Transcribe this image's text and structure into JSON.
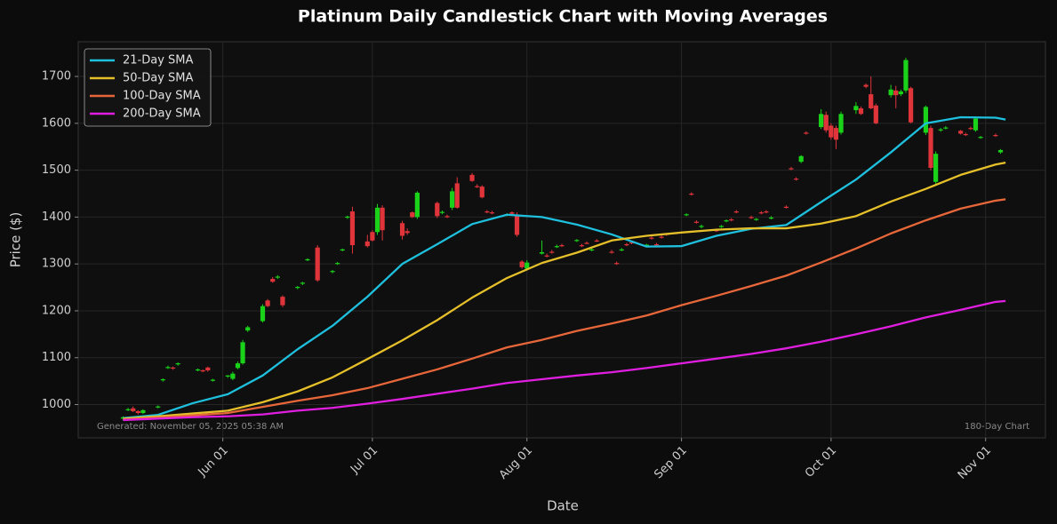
{
  "chart_data": {
    "type": "candlestick",
    "title": "Platinum Daily Candlestick Chart with Moving Averages",
    "x_label": "Date",
    "y_label": "Price ($)",
    "footer_left": "Generated: November 05, 2025 05:38 AM",
    "footer_right": "180-Day Chart",
    "grid": true,
    "legend": "upper left",
    "xlim": [
      "May 03",
      "Nov 13"
    ],
    "xticks": [
      "Jun 01",
      "Jul 01",
      "Aug 01",
      "Sep 01",
      "Oct 01",
      "Nov 01"
    ],
    "ylim": [
      929,
      1774
    ],
    "yticks": [
      1000,
      1100,
      1200,
      1300,
      1400,
      1500,
      1600,
      1700
    ],
    "up_color": "#19d219",
    "down_color": "#e0343b",
    "candles": {
      "x": [
        "May 12",
        "May 13",
        "May 14",
        "May 15",
        "May 16",
        "May 19",
        "May 20",
        "May 21",
        "May 22",
        "May 23",
        "May 27",
        "May 28",
        "May 29",
        "May 30",
        "Jun 02",
        "Jun 03",
        "Jun 04",
        "Jun 05",
        "Jun 06",
        "Jun 09",
        "Jun 10",
        "Jun 11",
        "Jun 12",
        "Jun 13",
        "Jun 16",
        "Jun 17",
        "Jun 18",
        "Jun 20",
        "Jun 23",
        "Jun 24",
        "Jun 25",
        "Jun 26",
        "Jun 27",
        "Jun 30",
        "Jul 01",
        "Jul 02",
        "Jul 03",
        "Jul 07",
        "Jul 08",
        "Jul 09",
        "Jul 10",
        "Jul 14",
        "Jul 15",
        "Jul 16",
        "Jul 17",
        "Jul 18",
        "Jul 21",
        "Jul 22",
        "Jul 23",
        "Jul 24",
        "Jul 25",
        "Jul 28",
        "Jul 29",
        "Jul 30",
        "Jul 31",
        "Aug 01",
        "Aug 04",
        "Aug 05",
        "Aug 06",
        "Aug 07",
        "Aug 08",
        "Aug 11",
        "Aug 12",
        "Aug 13",
        "Aug 14",
        "Aug 15",
        "Aug 18",
        "Aug 19",
        "Aug 20",
        "Aug 21",
        "Aug 22",
        "Aug 25",
        "Aug 26",
        "Aug 27",
        "Aug 28",
        "Aug 29",
        "Sep 02",
        "Sep 03",
        "Sep 04",
        "Sep 05",
        "Sep 08",
        "Sep 09",
        "Sep 10",
        "Sep 11",
        "Sep 12",
        "Sep 15",
        "Sep 16",
        "Sep 17",
        "Sep 18",
        "Sep 19",
        "Sep 22",
        "Sep 23",
        "Sep 24",
        "Sep 25",
        "Sep 26",
        "Sep 29",
        "Sep 30",
        "Oct 01",
        "Oct 02",
        "Oct 03",
        "Oct 06",
        "Oct 07",
        "Oct 08",
        "Oct 09",
        "Oct 10",
        "Oct 13",
        "Oct 14",
        "Oct 15",
        "Oct 16",
        "Oct 17",
        "Oct 20",
        "Oct 21",
        "Oct 22",
        "Oct 23",
        "Oct 24",
        "Oct 27",
        "Oct 28",
        "Oct 29",
        "Oct 30",
        "Oct 31",
        "Nov 03",
        "Nov 04"
      ],
      "open": [
        970,
        988,
        992,
        986,
        982,
        995,
        1052,
        1078,
        1079,
        1086,
        1074,
        1073,
        1079,
        1052,
        1060,
        1055,
        1078,
        1088,
        1158,
        1178,
        1222,
        1268,
        1272,
        1230,
        1250,
        1259,
        1309,
        1335,
        1283,
        1301,
        1330,
        1400,
        1412,
        1348,
        1368,
        1368,
        1420,
        1387,
        1370,
        1410,
        1400,
        1430,
        1410,
        1402,
        1420,
        1472,
        1490,
        1466,
        1465,
        1412,
        1410,
        1405,
        1410,
        1405,
        1305,
        1290,
        1322,
        1318,
        1326,
        1337,
        1340,
        1350,
        1340,
        1345,
        1330,
        1350,
        1326,
        1302,
        1330,
        1342,
        1346,
        1340,
        1356,
        1342,
        1358,
        1364,
        1405,
        1450,
        1390,
        1380,
        1372,
        1380,
        1392,
        1395,
        1412,
        1400,
        1395,
        1410,
        1412,
        1398,
        1422,
        1504,
        1482,
        1518,
        1580,
        1592,
        1618,
        1595,
        1590,
        1580,
        1628,
        1632,
        1682,
        1662,
        1638,
        1660,
        1670,
        1662,
        1670,
        1675,
        1580,
        1590,
        1475,
        1585,
        1590,
        1584,
        1577,
        1590,
        1585,
        1570,
        1575,
        1538
      ],
      "high": [
        975,
        993,
        996,
        988,
        990,
        998,
        1056,
        1083,
        1081,
        1090,
        1077,
        1075,
        1081,
        1055,
        1063,
        1070,
        1092,
        1138,
        1168,
        1214,
        1225,
        1272,
        1276,
        1233,
        1253,
        1262,
        1312,
        1340,
        1287,
        1304,
        1333,
        1403,
        1422,
        1362,
        1372,
        1428,
        1425,
        1392,
        1376,
        1412,
        1455,
        1433,
        1414,
        1405,
        1462,
        1485,
        1494,
        1470,
        1468,
        1415,
        1413,
        1408,
        1412,
        1410,
        1308,
        1308,
        1350,
        1322,
        1330,
        1341,
        1343,
        1353,
        1343,
        1348,
        1334,
        1353,
        1330,
        1305,
        1334,
        1345,
        1349,
        1343,
        1359,
        1345,
        1361,
        1366,
        1408,
        1453,
        1393,
        1384,
        1375,
        1383,
        1395,
        1398,
        1415,
        1403,
        1398,
        1413,
        1415,
        1402,
        1425,
        1507,
        1485,
        1532,
        1583,
        1630,
        1625,
        1600,
        1595,
        1625,
        1645,
        1636,
        1685,
        1700,
        1642,
        1682,
        1680,
        1672,
        1740,
        1678,
        1638,
        1595,
        1540,
        1590,
        1594,
        1586,
        1580,
        1593,
        1615,
        1573,
        1578,
        1545
      ],
      "low": [
        966,
        986,
        984,
        979,
        980,
        992,
        1049,
        1076,
        1074,
        1083,
        1071,
        1069,
        1070,
        1049,
        1057,
        1052,
        1075,
        1085,
        1155,
        1175,
        1208,
        1260,
        1268,
        1208,
        1246,
        1255,
        1306,
        1262,
        1280,
        1298,
        1327,
        1396,
        1322,
        1335,
        1348,
        1362,
        1350,
        1352,
        1362,
        1398,
        1396,
        1398,
        1406,
        1398,
        1415,
        1418,
        1475,
        1462,
        1440,
        1408,
        1406,
        1402,
        1405,
        1358,
        1290,
        1286,
        1320,
        1314,
        1322,
        1334,
        1336,
        1347,
        1336,
        1342,
        1327,
        1347,
        1322,
        1298,
        1327,
        1338,
        1342,
        1337,
        1352,
        1338,
        1354,
        1360,
        1402,
        1446,
        1386,
        1376,
        1368,
        1377,
        1389,
        1391,
        1408,
        1396,
        1392,
        1406,
        1408,
        1395,
        1418,
        1500,
        1478,
        1515,
        1576,
        1588,
        1580,
        1565,
        1545,
        1576,
        1620,
        1618,
        1675,
        1630,
        1598,
        1655,
        1632,
        1658,
        1665,
        1600,
        1575,
        1500,
        1470,
        1582,
        1587,
        1576,
        1573,
        1586,
        1582,
        1567,
        1571,
        1535
      ],
      "close": [
        973,
        990,
        986,
        982,
        988,
        996,
        1054,
        1080,
        1077,
        1088,
        1075,
        1072,
        1073,
        1053,
        1062,
        1066,
        1088,
        1133,
        1165,
        1210,
        1210,
        1262,
        1273,
        1212,
        1251,
        1260,
        1310,
        1265,
        1285,
        1302,
        1331,
        1401,
        1340,
        1338,
        1350,
        1420,
        1372,
        1360,
        1366,
        1400,
        1452,
        1402,
        1411,
        1400,
        1455,
        1420,
        1477,
        1465,
        1442,
        1410,
        1409,
        1406,
        1407,
        1362,
        1293,
        1303,
        1325,
        1316,
        1325,
        1338,
        1339,
        1351,
        1339,
        1344,
        1331,
        1349,
        1325,
        1301,
        1331,
        1341,
        1345,
        1341,
        1355,
        1341,
        1357,
        1363,
        1406,
        1449,
        1389,
        1381,
        1371,
        1381,
        1393,
        1394,
        1411,
        1399,
        1396,
        1409,
        1411,
        1399,
        1421,
        1503,
        1481,
        1530,
        1579,
        1620,
        1585,
        1570,
        1565,
        1620,
        1637,
        1620,
        1678,
        1632,
        1600,
        1672,
        1660,
        1668,
        1735,
        1602,
        1635,
        1505,
        1535,
        1587,
        1591,
        1578,
        1576,
        1589,
        1610,
        1571,
        1574,
        1543
      ]
    },
    "x": [
      "May 12",
      "May 19",
      "May 26",
      "Jun 02",
      "Jun 09",
      "Jun 16",
      "Jun 23",
      "Jun 30",
      "Jul 07",
      "Jul 14",
      "Jul 21",
      "Jul 28",
      "Aug 04",
      "Aug 11",
      "Aug 18",
      "Aug 25",
      "Sep 01",
      "Sep 08",
      "Sep 15",
      "Sep 22",
      "Sep 29",
      "Oct 06",
      "Oct 13",
      "Oct 20",
      "Oct 27",
      "Nov 03",
      "Nov 05"
    ],
    "series": [
      {
        "name": "21-Day SMA",
        "color": "#1ec0de",
        "values": [
          971,
          978,
          1003,
          1022,
          1062,
          1118,
          1168,
          1230,
          1300,
          1342,
          1385,
          1405,
          1400,
          1384,
          1363,
          1337,
          1338,
          1360,
          1375,
          1383,
          1432,
          1480,
          1538,
          1600,
          1613,
          1612,
          1608
        ]
      },
      {
        "name": "50-Day SMA",
        "color": "#e6c02a",
        "values": [
          970,
          975,
          981,
          987,
          1005,
          1028,
          1058,
          1097,
          1137,
          1180,
          1228,
          1270,
          1302,
          1324,
          1350,
          1360,
          1367,
          1373,
          1376,
          1376,
          1386,
          1402,
          1433,
          1460,
          1490,
          1512,
          1516
        ]
      },
      {
        "name": "100-Day SMA",
        "color": "#e8673a",
        "values": [
          968,
          972,
          977,
          982,
          995,
          1008,
          1020,
          1035,
          1055,
          1075,
          1098,
          1122,
          1138,
          1157,
          1173,
          1190,
          1212,
          1232,
          1253,
          1275,
          1303,
          1333,
          1365,
          1393,
          1418,
          1435,
          1438
        ]
      },
      {
        "name": "200-Day SMA",
        "color": "#e01ee0",
        "values": [
          967,
          970,
          973,
          975,
          979,
          987,
          993,
          1002,
          1012,
          1023,
          1034,
          1046,
          1054,
          1062,
          1069,
          1078,
          1088,
          1098,
          1108,
          1120,
          1134,
          1150,
          1167,
          1186,
          1202,
          1219,
          1221
        ]
      }
    ]
  }
}
